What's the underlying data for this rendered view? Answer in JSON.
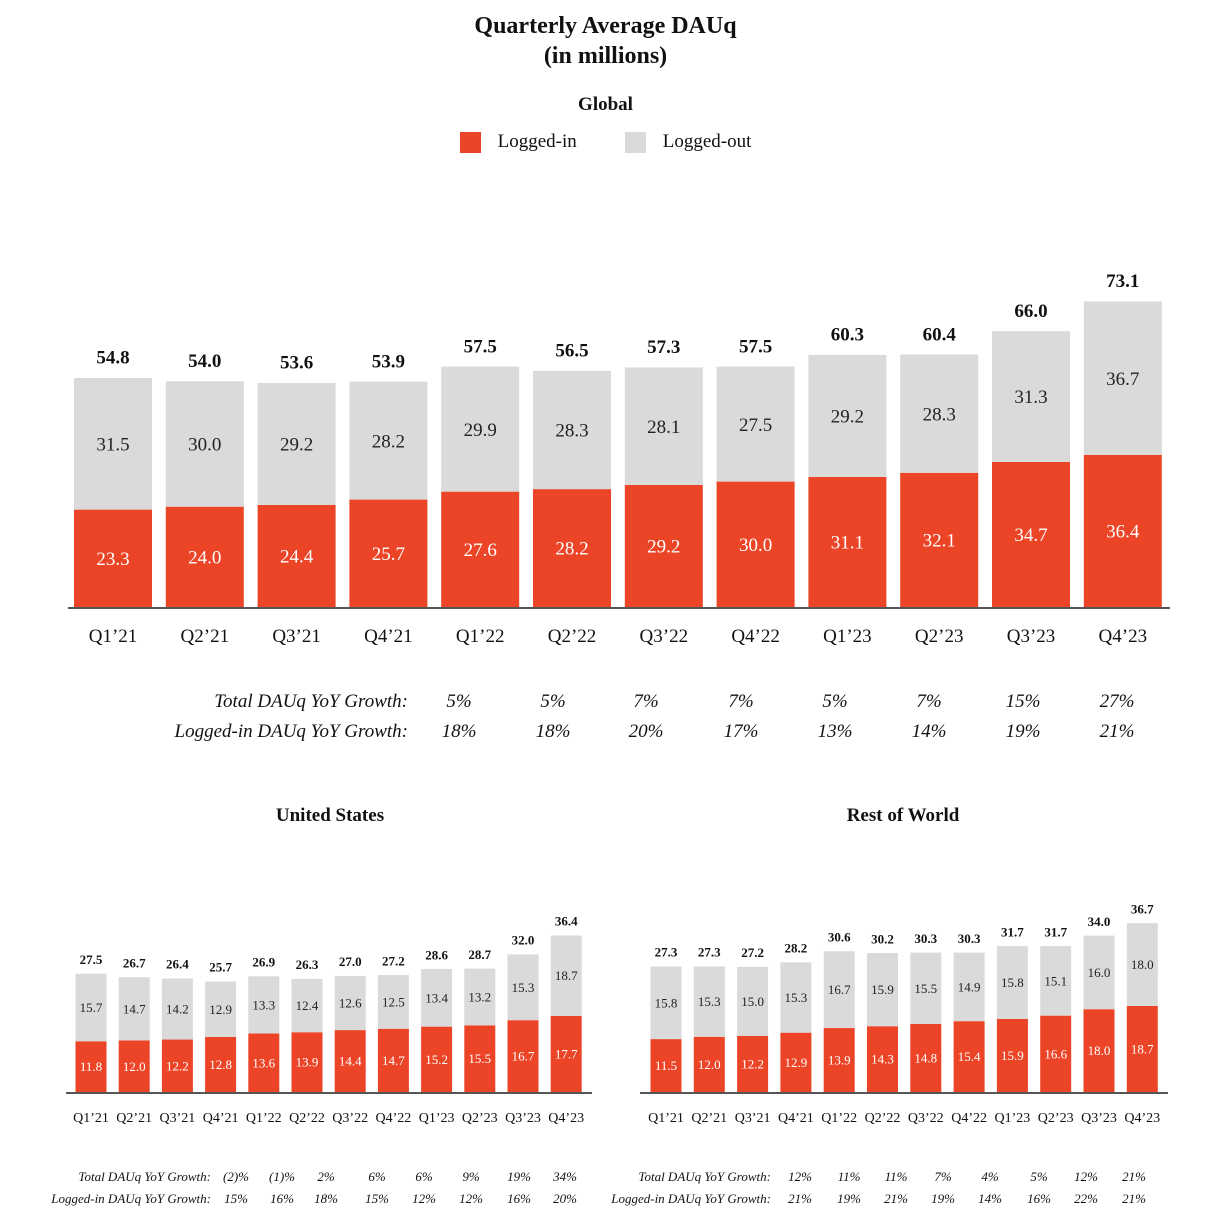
{
  "title_line1": "Quarterly Average DAUq",
  "title_line2": "(in millions)",
  "legend": {
    "logged_in": "Logged-in",
    "logged_out": "Logged-out"
  },
  "colors": {
    "logged_in": "#EC4426",
    "logged_out": "#DADADA",
    "axis": "#555555"
  },
  "growth_labels": {
    "total": "Total DAUq YoY Growth:",
    "logged_in": "Logged-in DAUq YoY Growth:"
  },
  "chart_data": [
    {
      "type": "bar",
      "stacked": true,
      "title": "Global",
      "categories": [
        "Q1’21",
        "Q2’21",
        "Q3’21",
        "Q4’21",
        "Q1’22",
        "Q2’22",
        "Q3’22",
        "Q4’22",
        "Q1’23",
        "Q2’23",
        "Q3’23",
        "Q4’23"
      ],
      "series": [
        {
          "name": "Logged-in",
          "values": [
            23.3,
            24.0,
            24.4,
            25.7,
            27.6,
            28.2,
            29.2,
            30.0,
            31.1,
            32.1,
            34.7,
            36.4
          ]
        },
        {
          "name": "Logged-out",
          "values": [
            31.5,
            30.0,
            29.2,
            28.2,
            29.9,
            28.3,
            28.1,
            27.5,
            29.2,
            28.3,
            31.3,
            36.7
          ]
        }
      ],
      "totals": [
        "54.8",
        "54.0",
        "53.6",
        "53.9",
        "57.5",
        "56.5",
        "57.3",
        "57.5",
        "60.3",
        "60.4",
        "66.0",
        "73.1"
      ],
      "total_growth": [
        "5%",
        "5%",
        "7%",
        "7%",
        "5%",
        "7%",
        "15%",
        "27%"
      ],
      "logged_in_growth": [
        "18%",
        "18%",
        "20%",
        "17%",
        "13%",
        "14%",
        "19%",
        "21%"
      ]
    },
    {
      "type": "bar",
      "stacked": true,
      "title": "United States",
      "categories": [
        "Q1’21",
        "Q2’21",
        "Q3’21",
        "Q4’21",
        "Q1’22",
        "Q2’22",
        "Q3’22",
        "Q4’22",
        "Q1’23",
        "Q2’23",
        "Q3’23",
        "Q4’23"
      ],
      "series": [
        {
          "name": "Logged-in",
          "values": [
            11.8,
            12.0,
            12.2,
            12.8,
            13.6,
            13.9,
            14.4,
            14.7,
            15.2,
            15.5,
            16.7,
            17.7
          ]
        },
        {
          "name": "Logged-out",
          "values": [
            15.7,
            14.7,
            14.2,
            12.9,
            13.3,
            12.4,
            12.6,
            12.5,
            13.4,
            13.2,
            15.3,
            18.7
          ]
        }
      ],
      "totals": [
        "27.5",
        "26.7",
        "26.4",
        "25.7",
        "26.9",
        "26.3",
        "27.0",
        "27.2",
        "28.6",
        "28.7",
        "32.0",
        "36.4"
      ],
      "total_growth": [
        "(2)%",
        "(1)%",
        "2%",
        "6%",
        "6%",
        "9%",
        "19%",
        "34%"
      ],
      "logged_in_growth": [
        "15%",
        "16%",
        "18%",
        "15%",
        "12%",
        "12%",
        "16%",
        "20%"
      ]
    },
    {
      "type": "bar",
      "stacked": true,
      "title": "Rest of World",
      "categories": [
        "Q1’21",
        "Q2’21",
        "Q3’21",
        "Q4’21",
        "Q1’22",
        "Q2’22",
        "Q3’22",
        "Q4’22",
        "Q1’23",
        "Q2’23",
        "Q3’23",
        "Q4’23"
      ],
      "series": [
        {
          "name": "Logged-in",
          "values": [
            11.5,
            12.0,
            12.2,
            12.9,
            13.9,
            14.3,
            14.8,
            15.4,
            15.9,
            16.6,
            18.0,
            18.7
          ]
        },
        {
          "name": "Logged-out",
          "values": [
            15.8,
            15.3,
            15.0,
            15.3,
            16.7,
            15.9,
            15.5,
            14.9,
            15.8,
            15.1,
            16.0,
            18.0
          ]
        }
      ],
      "totals": [
        "27.3",
        "27.3",
        "27.2",
        "28.2",
        "30.6",
        "30.2",
        "30.3",
        "30.3",
        "31.7",
        "31.7",
        "34.0",
        "36.7"
      ],
      "total_growth": [
        "12%",
        "11%",
        "11%",
        "7%",
        "4%",
        "5%",
        "12%",
        "21%"
      ],
      "logged_in_growth": [
        "21%",
        "19%",
        "21%",
        "19%",
        "14%",
        "16%",
        "22%",
        "21%"
      ]
    }
  ]
}
